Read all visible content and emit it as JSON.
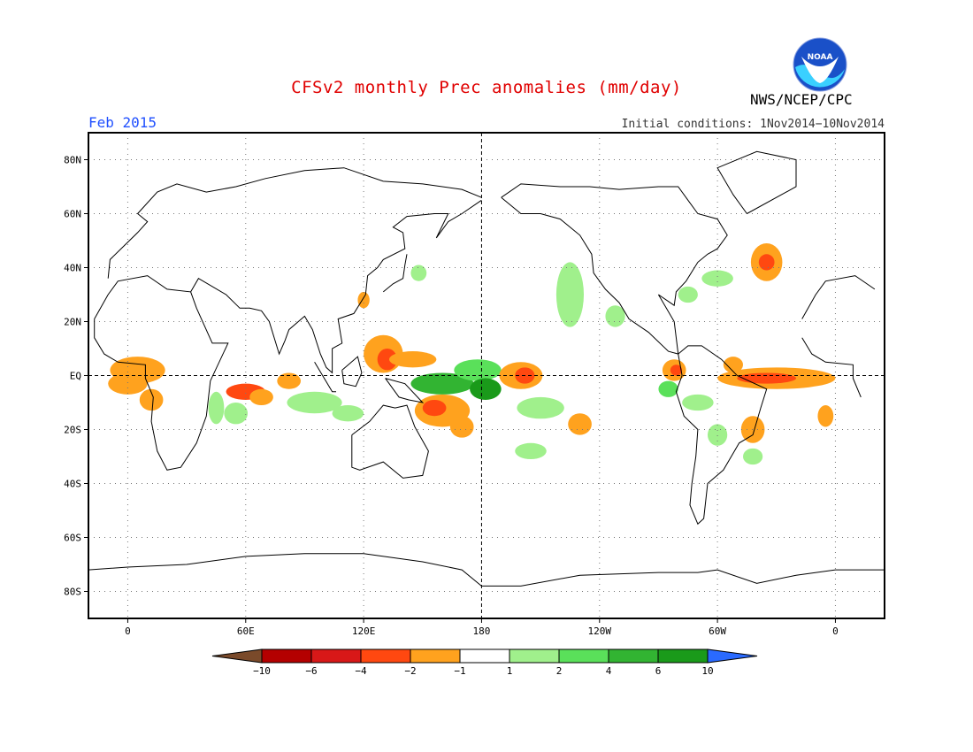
{
  "header": {
    "title": "CFSv2 monthly Prec anomalies (mm/day)",
    "organization": "NWS/NCEP/CPC",
    "logo_text": "NOAA",
    "month": "Feb 2015",
    "initial_conditions": "Initial conditions: 1Nov2014−10Nov2014"
  },
  "axes": {
    "lat_ticks": [
      {
        "value": 80,
        "label": "80N"
      },
      {
        "value": 60,
        "label": "60N"
      },
      {
        "value": 40,
        "label": "40N"
      },
      {
        "value": 20,
        "label": "20N"
      },
      {
        "value": 0,
        "label": "EQ"
      },
      {
        "value": -20,
        "label": "20S"
      },
      {
        "value": -40,
        "label": "40S"
      },
      {
        "value": -60,
        "label": "60S"
      },
      {
        "value": -80,
        "label": "80S"
      }
    ],
    "lon_ticks": [
      {
        "value": 0,
        "label": "0"
      },
      {
        "value": 60,
        "label": "60E"
      },
      {
        "value": 120,
        "label": "120E"
      },
      {
        "value": 180,
        "label": "180"
      },
      {
        "value": 240,
        "label": "120W"
      },
      {
        "value": 300,
        "label": "60W"
      },
      {
        "value": 360,
        "label": "0"
      }
    ],
    "lon_range": [
      -20,
      385
    ],
    "lat_range": [
      -90,
      90
    ]
  },
  "colorbar": {
    "labels": [
      "−10",
      "−6",
      "−4",
      "−2",
      "−1",
      "1",
      "2",
      "4",
      "6",
      "10"
    ],
    "colors": [
      "#7a4a2a",
      "#b40000",
      "#d81818",
      "#ff4810",
      "#ffa21e",
      "#ffffff",
      "#a0f08c",
      "#5ae05a",
      "#32b432",
      "#1a9a1a",
      "#2a6aff"
    ]
  },
  "anomalies": [
    {
      "lon": 5,
      "lat": 2,
      "rx": 14,
      "ry": 5,
      "level": "-2"
    },
    {
      "lon": 0,
      "lat": -3,
      "rx": 10,
      "ry": 4,
      "level": "-2"
    },
    {
      "lon": 12,
      "lat": -9,
      "rx": 6,
      "ry": 4,
      "level": "-2"
    },
    {
      "lon": 60,
      "lat": -6,
      "rx": 10,
      "ry": 3,
      "level": "-4"
    },
    {
      "lon": 68,
      "lat": -8,
      "rx": 6,
      "ry": 3,
      "level": "-2"
    },
    {
      "lon": 55,
      "lat": -14,
      "rx": 6,
      "ry": 4,
      "level": "1"
    },
    {
      "lon": 45,
      "lat": -12,
      "rx": 4,
      "ry": 6,
      "level": "1"
    },
    {
      "lon": 82,
      "lat": -2,
      "rx": 6,
      "ry": 3,
      "level": "-2"
    },
    {
      "lon": 95,
      "lat": -10,
      "rx": 14,
      "ry": 4,
      "level": "1"
    },
    {
      "lon": 112,
      "lat": -14,
      "rx": 8,
      "ry": 3,
      "level": "1"
    },
    {
      "lon": 130,
      "lat": 8,
      "rx": 10,
      "ry": 7,
      "level": "-2"
    },
    {
      "lon": 132,
      "lat": 6,
      "rx": 5,
      "ry": 4,
      "level": "-4"
    },
    {
      "lon": 145,
      "lat": 6,
      "rx": 12,
      "ry": 3,
      "level": "-2"
    },
    {
      "lon": 160,
      "lat": -3,
      "rx": 16,
      "ry": 4,
      "level": "4"
    },
    {
      "lon": 178,
      "lat": 2,
      "rx": 12,
      "ry": 4,
      "level": "2"
    },
    {
      "lon": 182,
      "lat": -5,
      "rx": 8,
      "ry": 4,
      "level": "6"
    },
    {
      "lon": 160,
      "lat": -13,
      "rx": 14,
      "ry": 6,
      "level": "-2"
    },
    {
      "lon": 156,
      "lat": -12,
      "rx": 6,
      "ry": 3,
      "level": "-4"
    },
    {
      "lon": 170,
      "lat": -19,
      "rx": 6,
      "ry": 4,
      "level": "-2"
    },
    {
      "lon": 200,
      "lat": 0,
      "rx": 11,
      "ry": 5,
      "level": "-2"
    },
    {
      "lon": 202,
      "lat": 0,
      "rx": 5,
      "ry": 3,
      "level": "-4"
    },
    {
      "lon": 225,
      "lat": 30,
      "rx": 7,
      "ry": 12,
      "level": "1"
    },
    {
      "lon": 210,
      "lat": -12,
      "rx": 12,
      "ry": 4,
      "level": "1"
    },
    {
      "lon": 230,
      "lat": -18,
      "rx": 6,
      "ry": 4,
      "level": "-2"
    },
    {
      "lon": 205,
      "lat": -28,
      "rx": 8,
      "ry": 3,
      "level": "1"
    },
    {
      "lon": 248,
      "lat": 22,
      "rx": 5,
      "ry": 4,
      "level": "1"
    },
    {
      "lon": 278,
      "lat": 2,
      "rx": 6,
      "ry": 4,
      "level": "-2"
    },
    {
      "lon": 279,
      "lat": 2,
      "rx": 3,
      "ry": 2,
      "level": "-4"
    },
    {
      "lon": 275,
      "lat": -5,
      "rx": 5,
      "ry": 3,
      "level": "2"
    },
    {
      "lon": 330,
      "lat": -1,
      "rx": 30,
      "ry": 4,
      "level": "-2"
    },
    {
      "lon": 325,
      "lat": -1,
      "rx": 15,
      "ry": 2,
      "level": "-4"
    },
    {
      "lon": 308,
      "lat": 4,
      "rx": 5,
      "ry": 3,
      "level": "-2"
    },
    {
      "lon": 325,
      "lat": 42,
      "rx": 8,
      "ry": 7,
      "level": "-2"
    },
    {
      "lon": 325,
      "lat": 42,
      "rx": 4,
      "ry": 3,
      "level": "-4"
    },
    {
      "lon": 300,
      "lat": 36,
      "rx": 8,
      "ry": 3,
      "level": "1"
    },
    {
      "lon": 285,
      "lat": 30,
      "rx": 5,
      "ry": 3,
      "level": "1"
    },
    {
      "lon": 318,
      "lat": -20,
      "rx": 6,
      "ry": 5,
      "level": "-2"
    },
    {
      "lon": 290,
      "lat": -10,
      "rx": 8,
      "ry": 3,
      "level": "1"
    },
    {
      "lon": 300,
      "lat": -22,
      "rx": 5,
      "ry": 4,
      "level": "1"
    },
    {
      "lon": 318,
      "lat": -30,
      "rx": 5,
      "ry": 3,
      "level": "1"
    },
    {
      "lon": 148,
      "lat": 38,
      "rx": 4,
      "ry": 3,
      "level": "1"
    },
    {
      "lon": 120,
      "lat": 28,
      "rx": 3,
      "ry": 3,
      "level": "-2"
    },
    {
      "lon": 355,
      "lat": -15,
      "rx": 4,
      "ry": 4,
      "level": "-2"
    }
  ]
}
